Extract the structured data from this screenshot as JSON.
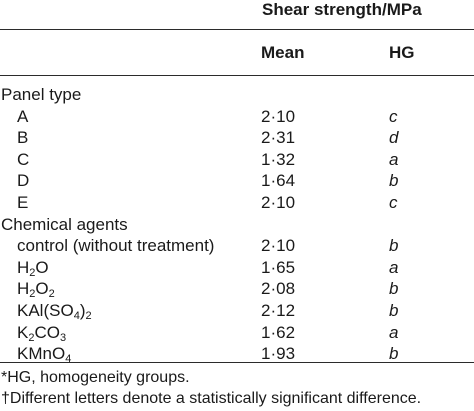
{
  "header": {
    "group_title": "Shear strength/MPa",
    "col_mean": "Mean",
    "col_hg": "HG"
  },
  "sections": [
    {
      "title": "Panel type",
      "rows": [
        {
          "label": "A",
          "mean": "2·10",
          "hg": "c"
        },
        {
          "label": "B",
          "mean": "2·31",
          "hg": "d"
        },
        {
          "label": "C",
          "mean": "1·32",
          "hg": "a"
        },
        {
          "label": "D",
          "mean": "1·64",
          "hg": "b"
        },
        {
          "label": "E",
          "mean": "2·10",
          "hg": "c"
        }
      ]
    },
    {
      "title": "Chemical agents",
      "rows": [
        {
          "label": "control (without treatment)",
          "mean": "2·10",
          "hg": "b"
        },
        {
          "label": "H2O",
          "label_parts": [
            "H",
            "2",
            "O"
          ],
          "mean": "1·65",
          "hg": "a"
        },
        {
          "label": "H2O2",
          "label_parts": [
            "H",
            "2",
            "O",
            "2"
          ],
          "mean": "2·08",
          "hg": "b"
        },
        {
          "label": "KAl(SO4)2",
          "label_parts": [
            "KAl(SO",
            "4",
            ")",
            "2"
          ],
          "mean": "2·12",
          "hg": "b"
        },
        {
          "label": "K2CO3",
          "label_parts": [
            "K",
            "2",
            "CO",
            "3"
          ],
          "mean": "1·62",
          "hg": "a"
        },
        {
          "label": "KMnO4",
          "label_parts": [
            "KMnO",
            "4"
          ],
          "mean": "1·93",
          "hg": "b"
        }
      ]
    }
  ],
  "footnotes": [
    "*HG, homogeneity groups.",
    "†Different letters denote a statistically significant difference."
  ]
}
